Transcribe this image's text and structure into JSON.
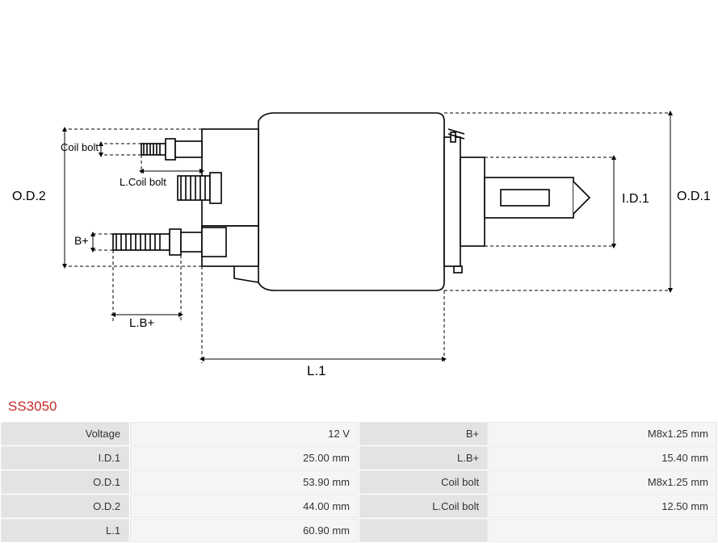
{
  "part_number": "SS3050",
  "diagram": {
    "labels": {
      "od2": "O.D.2",
      "od1": "O.D.1",
      "id1": "I.D.1",
      "coil_bolt": "Coil bolt",
      "l_coil_bolt": "L.Coil bolt",
      "b_plus": "B+",
      "l_b_plus": "L.B+",
      "l1": "L.1"
    },
    "colors": {
      "stroke": "#000000",
      "fill": "#ffffff",
      "dash": "4,3"
    }
  },
  "specs": [
    {
      "label": "Voltage",
      "value": "12 V",
      "label2": "B+",
      "value2": "M8x1.25 mm"
    },
    {
      "label": "I.D.1",
      "value": "25.00 mm",
      "label2": "L.B+",
      "value2": "15.40 mm"
    },
    {
      "label": "O.D.1",
      "value": "53.90 mm",
      "label2": "Coil bolt",
      "value2": "M8x1.25 mm"
    },
    {
      "label": "O.D.2",
      "value": "44.00 mm",
      "label2": "L.Coil bolt",
      "value2": "12.50 mm"
    },
    {
      "label": "L.1",
      "value": "60.90 mm",
      "label2": "",
      "value2": ""
    }
  ],
  "table_style": {
    "label_bg": "#e3e3e3",
    "value_bg": "#f5f5f5",
    "border": "#e8e8e8",
    "font_size": 13
  }
}
